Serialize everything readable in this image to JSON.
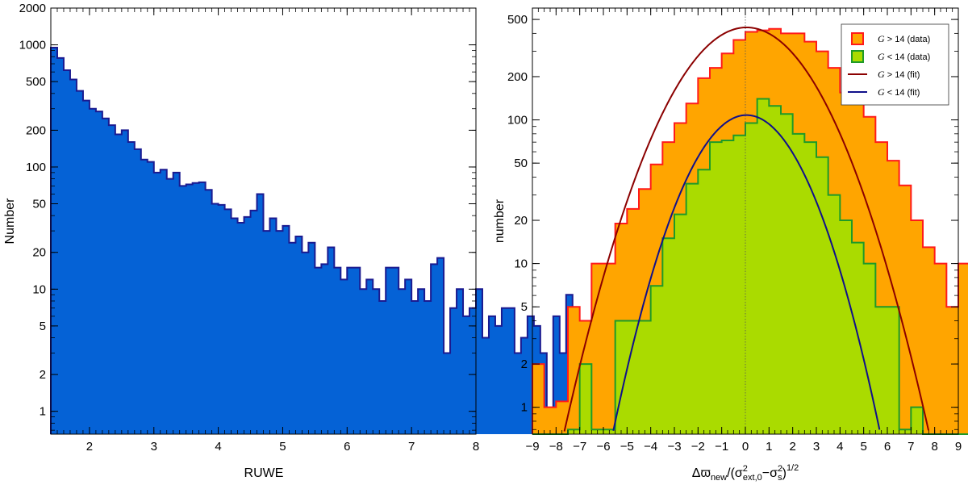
{
  "chart_data": [
    {
      "type": "histogram",
      "xlabel": "RUWE",
      "ylabel": "Number",
      "y_scale": "log",
      "xlim": [
        1.4,
        8.0
      ],
      "ylim": [
        0.65,
        2000
      ],
      "x_tick_labels": [
        "2",
        "3",
        "4",
        "5",
        "6",
        "7",
        "8"
      ],
      "x_ticks": [
        2,
        3,
        4,
        5,
        6,
        7,
        8
      ],
      "y_tick_labels": [
        "1",
        "2",
        "5",
        "10",
        "20",
        "50",
        "100",
        "200",
        "500",
        "1000",
        "2000"
      ],
      "y_ticks": [
        1,
        2,
        5,
        10,
        20,
        50,
        100,
        200,
        500,
        1000,
        2000
      ],
      "bin_start": 1.4,
      "bin_width": 0.1,
      "series": [
        {
          "values": [
            950,
            780,
            620,
            520,
            420,
            350,
            300,
            285,
            250,
            220,
            185,
            200,
            160,
            140,
            115,
            110,
            90,
            95,
            80,
            90,
            70,
            72,
            74,
            75,
            65,
            50,
            49,
            45,
            38,
            35,
            39,
            44,
            60,
            30,
            38,
            30,
            33,
            24,
            27,
            20,
            24,
            15,
            16,
            22,
            15,
            12,
            15,
            15,
            10,
            12,
            10,
            8,
            15,
            15,
            10,
            12,
            8,
            10,
            8,
            16,
            18,
            3,
            7,
            10,
            6,
            7,
            10,
            4,
            6,
            5,
            7,
            7,
            3,
            4,
            6,
            5,
            3,
            0.7,
            6,
            3,
            9,
            6
          ],
          "color": "#0562d6",
          "edge_color": "#1a1a90"
        }
      ]
    },
    {
      "type": "histogram",
      "xlabel_parts": {
        "delta": "Δϖ",
        "new": "new",
        "sigma1": "σ",
        "sup1": "2",
        "sub1": "ext,0",
        "minus": "−",
        "sigma2": "σ",
        "sup2": "2",
        "sub2": "s",
        "tail": ")",
        "power": "1/2"
      },
      "ylabel": "number",
      "y_scale": "log",
      "xlim": [
        -9,
        9
      ],
      "ylim": [
        0.65,
        600
      ],
      "x_tick_labels": [
        "−9",
        "−8",
        "−7",
        "−6",
        "−5",
        "−4",
        "−3",
        "−2",
        "−1",
        "0",
        "1",
        "2",
        "3",
        "4",
        "5",
        "6",
        "7",
        "8",
        "9"
      ],
      "x_ticks": [
        -9,
        -8,
        -7,
        -6,
        -5,
        -4,
        -3,
        -2,
        -1,
        0,
        1,
        2,
        3,
        4,
        5,
        6,
        7,
        8,
        9
      ],
      "y_tick_labels": [
        "1",
        "2",
        "5",
        "10",
        "20",
        "50",
        "100",
        "200",
        "500"
      ],
      "y_ticks": [
        1,
        2,
        5,
        10,
        20,
        50,
        100,
        200,
        500
      ],
      "bin_start": -9,
      "bin_width": 0.5,
      "series": [
        {
          "name": "G > 14 (data)",
          "values": [
            2,
            1,
            1.1,
            5,
            4,
            10,
            10,
            19,
            24,
            33,
            49,
            70,
            95,
            130,
            195,
            230,
            290,
            360,
            410,
            420,
            430,
            400,
            400,
            350,
            300,
            230,
            155,
            140,
            105,
            70,
            52,
            35,
            20,
            13,
            10,
            5,
            10,
            2,
            1.5,
            2
          ],
          "color": "#ffa500",
          "edge_color": "#ff1a1a"
        },
        {
          "name": "G < 14 (data)",
          "values": [
            0,
            0,
            0,
            0.7,
            2,
            0.7,
            0.7,
            4,
            4,
            4,
            7,
            15,
            22,
            36,
            45,
            70,
            72,
            78,
            95,
            140,
            125,
            110,
            80,
            70,
            55,
            30,
            20,
            14,
            10,
            5,
            5,
            0.7,
            1,
            0,
            0,
            0,
            0,
            0,
            0,
            0
          ],
          "color": "#aadb00",
          "edge_color": "#1e9a28"
        },
        {
          "name": "G > 14 (fit)",
          "type": "gaussian",
          "amplitude": 440,
          "mean": 0.05,
          "sigma": 2.14,
          "color": "#8b0000"
        },
        {
          "name": "G < 14 (fit)",
          "type": "gaussian",
          "amplitude": 108,
          "mean": 0.05,
          "sigma": 1.77,
          "color": "#10108a"
        }
      ],
      "legend": {
        "placement": "top-right",
        "entries": [
          {
            "symbol": "G",
            "text": " > 14 (data)"
          },
          {
            "symbol": "G",
            "text": " < 14 (data)"
          },
          {
            "symbol": "G",
            "text": " > 14 (fit)"
          },
          {
            "symbol": "G",
            "text": " < 14 (fit)"
          }
        ]
      },
      "reference_line": {
        "x": 0,
        "style": "dotted"
      }
    }
  ]
}
